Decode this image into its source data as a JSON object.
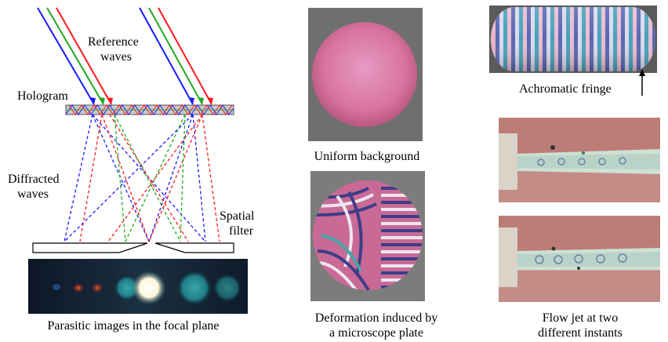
{
  "optics_diagram": {
    "reference_label_line1": "Reference",
    "reference_label_line2": "waves",
    "hologram_label": "Hologram",
    "diffracted_label_line1": "Diffracted",
    "diffracted_label_line2": "waves",
    "spatial_label_line1": "Spatial",
    "spatial_label_line2": "filter",
    "beam_colors": [
      "#1a1aff",
      "#22aa22",
      "#ff1a1a"
    ]
  },
  "captions": {
    "parasitic": "Parasitic images in the focal plane",
    "uniform": "Uniform background",
    "deformation_line1": "Deformation induced by",
    "deformation_line2": "a microscope plate",
    "achromatic": "Achromatic fringe",
    "flow_line1": "Flow jet at two",
    "flow_line2": "different instants"
  }
}
